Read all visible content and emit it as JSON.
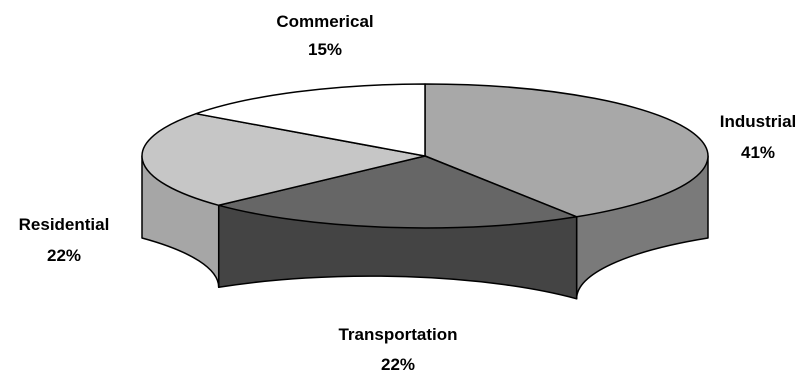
{
  "chart_data": {
    "type": "pie",
    "style": "3d",
    "categories": [
      "Industrial",
      "Transportation",
      "Residential",
      "Commerical"
    ],
    "values": [
      41,
      22,
      22,
      15
    ],
    "labels": [
      {
        "name": "Industrial",
        "pct": "41%"
      },
      {
        "name": "Transportation",
        "pct": "22%"
      },
      {
        "name": "Residential",
        "pct": "22%"
      },
      {
        "name": "Commerical",
        "pct": "15%"
      }
    ],
    "colors": {
      "Industrial": "#a8a8a8",
      "Transportation": "#666666",
      "Residential": "#c6c6c6",
      "Commerical": "#ffffff"
    },
    "side_colors": {
      "Industrial": "#7a7a7a",
      "Transportation": "#444444",
      "Residential": "#a6a6a6",
      "Commerical": "#d9d9d9"
    },
    "outline_color": "#000000"
  }
}
